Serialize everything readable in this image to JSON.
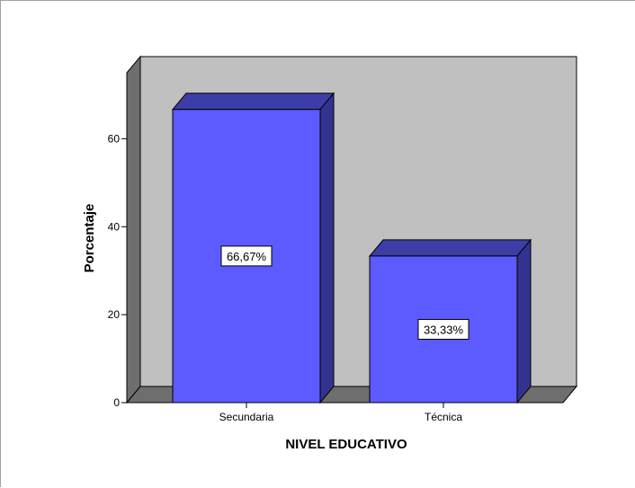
{
  "chart_data": {
    "type": "bar",
    "categories": [
      "Secundaria",
      "Técnica"
    ],
    "values": [
      66.67,
      33.33
    ],
    "data_labels": [
      "66,67%",
      "33,33%"
    ],
    "xlabel": "NIVEL EDUCATIVO",
    "ylabel": "Porcentaje",
    "ylim": [
      0,
      75
    ],
    "yticks": [
      "0",
      "20",
      "40",
      "60"
    ],
    "three_d": true,
    "grid": false,
    "colors": {
      "bar_front": "#5b5bff",
      "bar_top": "#3d3da8",
      "bar_side": "#33338f",
      "back_wall": "#c0c0c0",
      "side_wall": "#6e6e6e",
      "floor": "#6e6e6e"
    }
  }
}
